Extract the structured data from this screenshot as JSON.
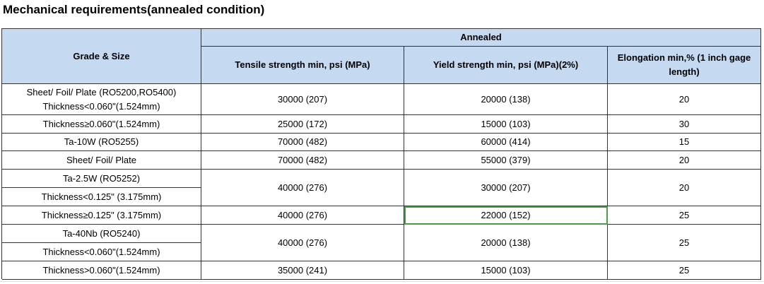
{
  "title": "Mechanical requirements(annealed condition)",
  "table": {
    "header": {
      "grade": "Grade & Size",
      "group": "Annealed",
      "columns": [
        "Tensile strength min, psi (MPa)",
        "Yield strength min, psi (MPa)(2%)",
        "Elongation min,% (1 inch gage length)"
      ]
    },
    "rows": [
      {
        "grade": [
          "Sheet/ Foil/ Plate (RO5200,RO5400)",
          "Thickness<0.060\"(1.524mm)"
        ],
        "tensile": "30000 (207)",
        "yield": "20000 (138)",
        "elongation": "20"
      },
      {
        "grade": [
          "Thickness≥0.060\"(1.524mm)"
        ],
        "tensile": "25000 (172)",
        "yield": "15000 (103)",
        "elongation": "30"
      },
      {
        "grade": [
          "Ta-10W (RO5255)"
        ],
        "tensile": "70000 (482)",
        "yield": "60000 (414)",
        "elongation": "15"
      },
      {
        "grade": [
          "Sheet/ Foil/ Plate"
        ],
        "tensile": "70000 (482)",
        "yield": "55000 (379)",
        "elongation": "20"
      },
      {
        "grade": [
          "Ta-2.5W  (RO5252)",
          "Thickness<0.125\" (3.175mm)"
        ],
        "tensile": "40000 (276)",
        "yield": "30000 (207)",
        "elongation": "20"
      },
      {
        "grade": [
          "Thickness≥0.125\" (3.175mm)"
        ],
        "tensile": "40000 (276)",
        "yield": "22000 (152)",
        "elongation": "25"
      },
      {
        "grade": [
          "Ta-40Nb (RO5240)",
          "Thickness<0.060\"(1.524mm)"
        ],
        "tensile": "40000 (276)",
        "yield": "20000 (138)",
        "elongation": "25"
      },
      {
        "grade": [
          "Thickness>0.060\"(1.524mm)"
        ],
        "tensile": "35000 (241)",
        "yield": "15000 (103)",
        "elongation": "25"
      }
    ]
  }
}
